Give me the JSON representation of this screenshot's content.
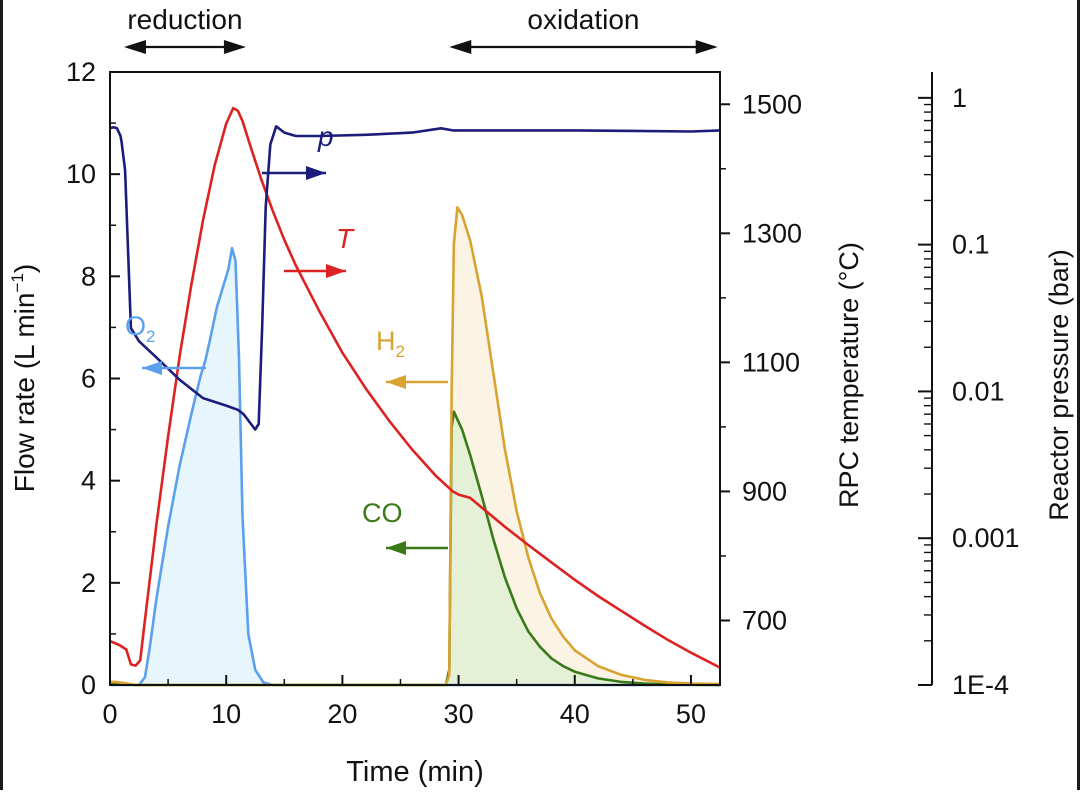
{
  "chart_data": {
    "type": "line",
    "xlabel": "Time (min)",
    "x_ticks": [
      0,
      10,
      20,
      30,
      40,
      50
    ],
    "xlim": [
      0,
      52.5
    ],
    "left_axis": {
      "label_main": "Flow rate (L min",
      "label_sup": "−1",
      "label_end": ")",
      "ylim": [
        0,
        12
      ],
      "ticks": [
        0,
        2,
        4,
        6,
        8,
        10,
        12
      ]
    },
    "temperature_axis": {
      "label": "RPC temperature (°C)",
      "ylim": [
        600,
        1550
      ],
      "ticks": [
        700,
        900,
        1100,
        1300,
        1500
      ]
    },
    "pressure_axis": {
      "label": "Reactor pressure (bar)",
      "ylim": [
        0.0001,
        1.5
      ],
      "ticks": [
        {
          "value": 1,
          "label": "1"
        },
        {
          "value": 0.1,
          "label": "0.1"
        },
        {
          "value": 0.01,
          "label": "0.01"
        },
        {
          "value": 0.001,
          "label": "0.001"
        },
        {
          "value": 0.0001,
          "label": "1E-4"
        }
      ]
    },
    "phases": [
      {
        "name": "reduction",
        "start": 1.2,
        "end": 11.7
      },
      {
        "name": "oxidation",
        "start": 29.2,
        "end": 52.3
      }
    ],
    "colors": {
      "p": "#1c1c7c",
      "T": "#dd2222",
      "O2": "#5aa0ee",
      "O2_fill": "#e6f6fc",
      "H2": "#d9a331",
      "H2_fill": "#fbf3e4",
      "CO": "#3b7a18",
      "CO_fill": "#e5f1d6"
    },
    "series": [
      {
        "name": "p",
        "label": "p",
        "axis": "pressure",
        "color": "#1c1c7c",
        "x": [
          0,
          0.3,
          0.6,
          0.9,
          1.0,
          1.3,
          1.5,
          1.8,
          2.5,
          4,
          6,
          8,
          10,
          11,
          11.5,
          12,
          12.5,
          12.8,
          13.1,
          13.4,
          13.8,
          14.3,
          15,
          16,
          18,
          22,
          26,
          28.5,
          29.5,
          32,
          40,
          50,
          52.5
        ],
        "y": [
          0.62,
          0.63,
          0.62,
          0.55,
          0.5,
          0.32,
          0.12,
          0.027,
          0.022,
          0.017,
          0.012,
          0.009,
          0.008,
          0.0075,
          0.007,
          0.0062,
          0.0055,
          0.006,
          0.028,
          0.18,
          0.48,
          0.64,
          0.58,
          0.55,
          0.55,
          0.56,
          0.58,
          0.62,
          0.6,
          0.6,
          0.6,
          0.59,
          0.6
        ]
      },
      {
        "name": "T",
        "label": "T",
        "axis": "temperature",
        "color": "#dd2222",
        "x": [
          0,
          0.8,
          1.4,
          1.8,
          2.2,
          2.6,
          3,
          4,
          5,
          6,
          7,
          8,
          9,
          10,
          10.6,
          11,
          11.4,
          12,
          13,
          14,
          15,
          16,
          18,
          20,
          22,
          24,
          26,
          28,
          29.5,
          30,
          31,
          32,
          34,
          36,
          38,
          40,
          42,
          44,
          46,
          48,
          50,
          52.5
        ],
        "y": [
          668,
          662,
          655,
          632,
          630,
          638,
          700,
          850,
          985,
          1110,
          1220,
          1320,
          1405,
          1470,
          1494,
          1490,
          1474,
          1440,
          1385,
          1335,
          1290,
          1250,
          1180,
          1115,
          1060,
          1010,
          965,
          925,
          900,
          895,
          890,
          875,
          845,
          817,
          790,
          763,
          738,
          715,
          692,
          670,
          650,
          627
        ]
      },
      {
        "name": "O2",
        "label_main": "O",
        "label_sub": "2",
        "axis": "flow",
        "color": "#5aa0ee",
        "fill": "#e6f6fc",
        "x": [
          0,
          1.5,
          2.5,
          3,
          3.4,
          4,
          5,
          6,
          7,
          7.8,
          8.2,
          8.6,
          9.2,
          9.8,
          10.2,
          10.5,
          10.8,
          11.1,
          11.4,
          11.9,
          12.5,
          13.2,
          14,
          52.5
        ],
        "y": [
          0,
          0,
          0,
          0.15,
          0.7,
          1.7,
          3.1,
          4.3,
          5.3,
          6.05,
          6.35,
          6.75,
          7.4,
          7.85,
          8.15,
          8.55,
          8.3,
          6.4,
          3.3,
          1.0,
          0.3,
          0.05,
          0,
          0
        ]
      },
      {
        "name": "H2",
        "label_main": "H",
        "label_sub": "2",
        "axis": "flow",
        "color": "#d9a331",
        "fill": "#fbf3e4",
        "x": [
          0,
          0.5,
          1.5,
          2.2,
          28.9,
          29.2,
          29.4,
          29.6,
          29.9,
          30.3,
          31,
          32,
          33,
          34,
          35,
          36,
          37,
          38,
          39,
          40,
          42,
          44,
          46,
          48,
          50,
          52.5
        ],
        "y": [
          0.06,
          0.06,
          0.03,
          0,
          0,
          0.2,
          5.7,
          8.65,
          9.35,
          9.2,
          8.7,
          7.6,
          6.1,
          4.6,
          3.4,
          2.5,
          1.8,
          1.3,
          0.95,
          0.68,
          0.37,
          0.2,
          0.1,
          0.05,
          0.03,
          0.02
        ]
      },
      {
        "name": "CO",
        "label": "CO",
        "axis": "flow",
        "color": "#3b7a18",
        "fill": "#e5f1d6",
        "x": [
          0,
          0.5,
          1.5,
          2.2,
          28.9,
          29.2,
          29.4,
          29.6,
          29.9,
          30.3,
          31,
          32,
          33,
          34,
          35,
          36,
          37,
          38,
          39,
          40,
          42,
          44,
          46,
          48,
          52.5
        ],
        "y": [
          0.03,
          0.03,
          0.01,
          0,
          0,
          0.3,
          5.05,
          5.35,
          5.2,
          5.0,
          4.5,
          3.7,
          2.85,
          2.1,
          1.5,
          1.05,
          0.75,
          0.52,
          0.37,
          0.26,
          0.13,
          0.06,
          0.03,
          0.01,
          0
        ]
      }
    ]
  }
}
